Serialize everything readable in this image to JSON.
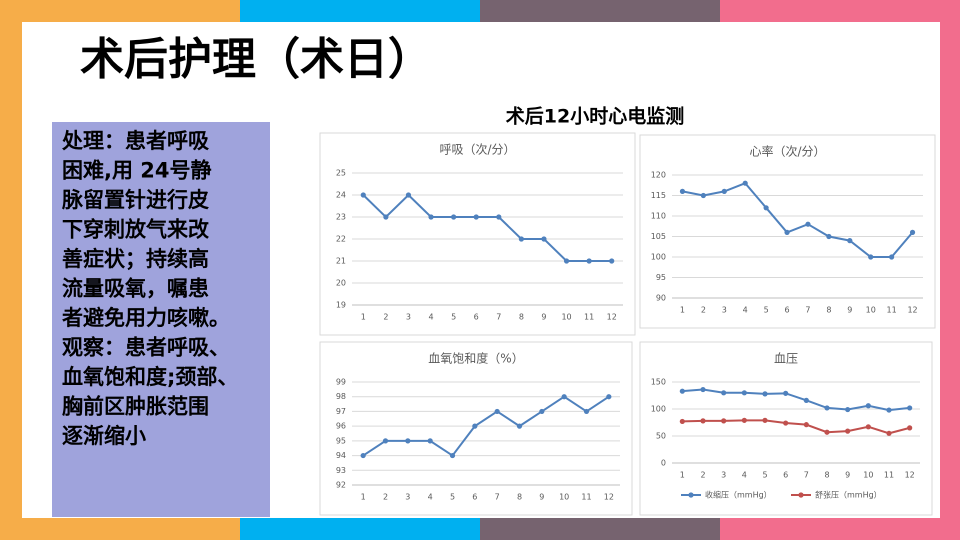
{
  "title": "术后护理（术日）",
  "text_box": [
    "处理：患者呼吸",
    "困难,用 24号静",
    "脉留置针进行皮",
    "下穿刺放气来改",
    "善症状；持续高",
    "流量吸氧，嘱患",
    "者避免用力咳嗽。",
    "观察：患者呼吸、",
    "血氧饱和度;颈部、",
    "胸前区肿胀范围",
    "逐渐缩小"
  ],
  "charts_title": "术后12小时心电监测",
  "chart_data": [
    {
      "type": "line",
      "title": "呼吸（次/分）",
      "categories": [
        "1",
        "2",
        "3",
        "4",
        "5",
        "6",
        "7",
        "8",
        "9",
        "10",
        "11",
        "12"
      ],
      "values": [
        24,
        23,
        24,
        23,
        23,
        23,
        23,
        22,
        22,
        21,
        21,
        21
      ],
      "color": "#4f81bd",
      "ylim": [
        19,
        25
      ],
      "yticks": [
        19,
        20,
        21,
        22,
        23,
        24,
        25
      ],
      "grid": true
    },
    {
      "type": "line",
      "title": "心率（次/分）",
      "categories": [
        "1",
        "2",
        "3",
        "4",
        "5",
        "6",
        "7",
        "8",
        "9",
        "10",
        "11",
        "12"
      ],
      "values": [
        116,
        115,
        116,
        118,
        112,
        106,
        108,
        105,
        104,
        100,
        100,
        106
      ],
      "color": "#4f81bd",
      "ylim": [
        90,
        120
      ],
      "yticks": [
        90,
        95,
        100,
        105,
        110,
        115,
        120
      ],
      "grid": true
    },
    {
      "type": "line",
      "title": "血氧饱和度（%）",
      "categories": [
        "1",
        "2",
        "3",
        "4",
        "5",
        "6",
        "7",
        "8",
        "9",
        "10",
        "11",
        "12"
      ],
      "values": [
        94,
        95,
        95,
        95,
        94,
        96,
        97,
        96,
        97,
        98,
        97,
        98
      ],
      "color": "#4f81bd",
      "ylim": [
        92,
        99
      ],
      "yticks": [
        92,
        93,
        94,
        95,
        96,
        97,
        98,
        99
      ],
      "grid": true
    },
    {
      "type": "line",
      "title": "血压",
      "categories": [
        "1",
        "2",
        "3",
        "4",
        "5",
        "6",
        "7",
        "8",
        "9",
        "10",
        "11",
        "12"
      ],
      "series": [
        {
          "name": "收缩压（mmHg）",
          "color": "#4f81bd",
          "values": [
            133,
            136,
            130,
            130,
            128,
            129,
            116,
            102,
            99,
            106,
            98,
            102
          ]
        },
        {
          "name": "舒张压（mmHg）",
          "color": "#c0504d",
          "values": [
            77,
            78,
            78,
            79,
            79,
            74,
            71,
            57,
            59,
            67,
            55,
            65
          ]
        }
      ],
      "ylim": [
        0,
        150
      ],
      "yticks": [
        0,
        50,
        100,
        150
      ],
      "grid": true,
      "legend": "bottom"
    }
  ]
}
